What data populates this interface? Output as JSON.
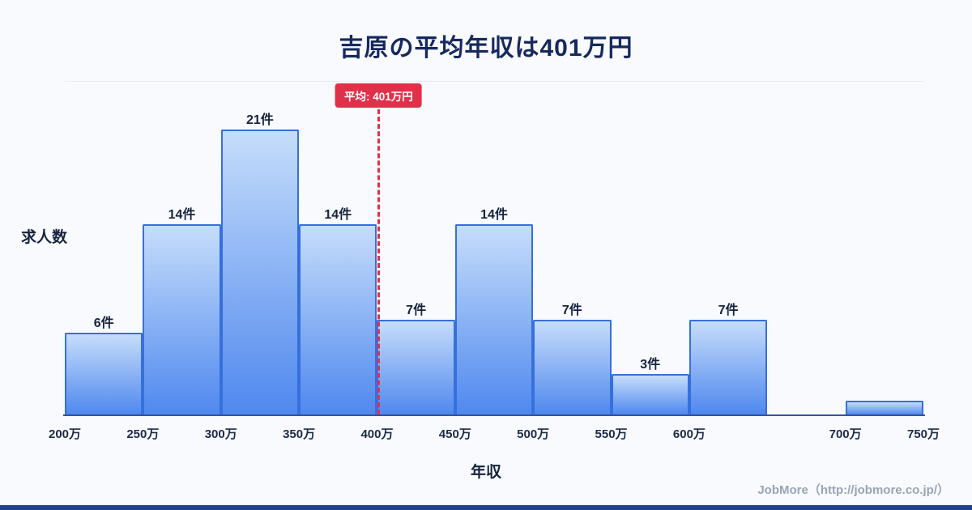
{
  "page": {
    "footer": "JobMore（http://jobmore.co.jp/）"
  },
  "chart_data": {
    "type": "bar",
    "title": "吉原の平均年収は401万円",
    "xlabel": "年収",
    "ylabel": "求人数",
    "x_unit": "万円",
    "x_range": [
      200,
      750
    ],
    "y_max": 21,
    "grid": false,
    "legend": false,
    "x_ticks": [
      {
        "value": 200,
        "label": "200万"
      },
      {
        "value": 250,
        "label": "250万"
      },
      {
        "value": 300,
        "label": "300万"
      },
      {
        "value": 350,
        "label": "350万"
      },
      {
        "value": 400,
        "label": "400万"
      },
      {
        "value": 450,
        "label": "450万"
      },
      {
        "value": 500,
        "label": "500万"
      },
      {
        "value": 550,
        "label": "550万"
      },
      {
        "value": 600,
        "label": "600万"
      },
      {
        "value": 700,
        "label": "700万"
      },
      {
        "value": 750,
        "label": "750万"
      }
    ],
    "bars": [
      {
        "range": [
          200,
          250
        ],
        "value": 6,
        "label": "6件"
      },
      {
        "range": [
          250,
          300
        ],
        "value": 14,
        "label": "14件"
      },
      {
        "range": [
          300,
          350
        ],
        "value": 21,
        "label": "21件"
      },
      {
        "range": [
          350,
          400
        ],
        "value": 14,
        "label": "14件"
      },
      {
        "range": [
          400,
          450
        ],
        "value": 7,
        "label": "7件"
      },
      {
        "range": [
          450,
          500
        ],
        "value": 14,
        "label": "14件"
      },
      {
        "range": [
          500,
          550
        ],
        "value": 7,
        "label": "7件"
      },
      {
        "range": [
          550,
          600
        ],
        "value": 3,
        "label": "3件"
      },
      {
        "range": [
          600,
          650
        ],
        "value": 7,
        "label": "7件"
      },
      {
        "range": [
          700,
          750
        ],
        "value": 1,
        "label": ""
      }
    ],
    "average": {
      "value": 401,
      "label": "平均: 401万円"
    },
    "colors": {
      "background": "#f8fafd",
      "bar_fill_top": "#c6ddfb",
      "bar_fill_bottom": "#4f88ee",
      "bar_border": "#3570dd",
      "axis_line": "#35549e",
      "average_line": "#e0314a",
      "title_text": "#16295e",
      "axis_text": "#1c2a49",
      "footer_text": "#9aa4b5",
      "bottom_strip": "#23418c"
    }
  }
}
